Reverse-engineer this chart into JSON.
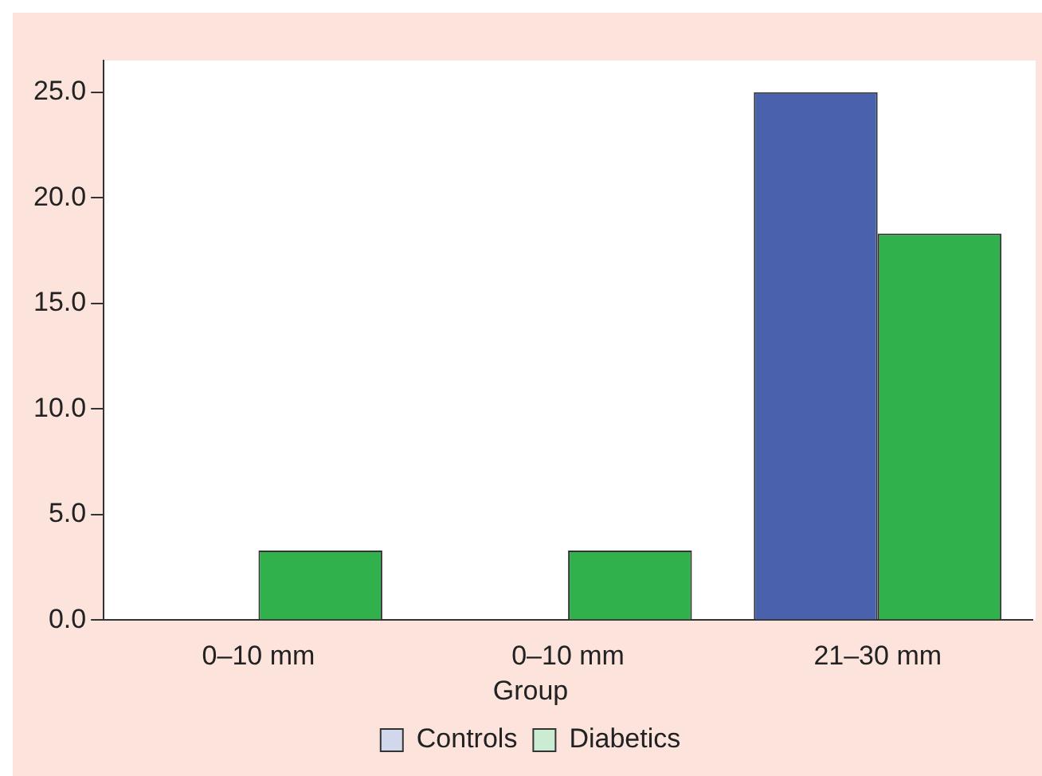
{
  "chart_data": {
    "type": "bar",
    "categories": [
      "0–10 mm",
      "0–10 mm",
      "21–30 mm"
    ],
    "series": [
      {
        "name": "Controls",
        "color": "#4a62ae",
        "values": [
          0,
          0,
          25
        ]
      },
      {
        "name": "Diabetics",
        "color": "#30b14b",
        "values": [
          3.3,
          3.3,
          18.3
        ]
      }
    ],
    "ylim": [
      0,
      26.5
    ],
    "yticks": [
      {
        "value": 0,
        "label": "0.0"
      },
      {
        "value": 5,
        "label": "5.0"
      },
      {
        "value": 10,
        "label": "10.0"
      },
      {
        "value": 15,
        "label": "15.0"
      },
      {
        "value": 20,
        "label": "20.0"
      },
      {
        "value": 25,
        "label": "25.0"
      }
    ],
    "legend": "bottom",
    "legend_title": "Group",
    "grid": false
  }
}
